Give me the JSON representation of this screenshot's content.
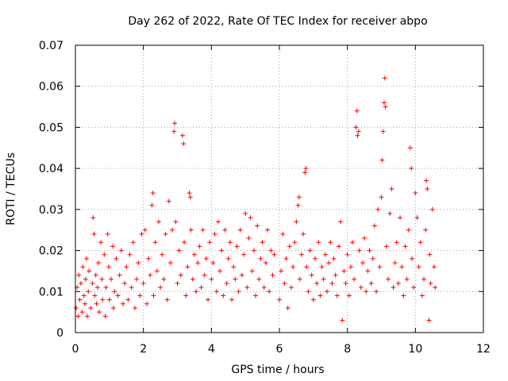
{
  "chart_data": {
    "type": "scatter",
    "title": "Day 262 of 2022, Rate Of TEC Index for receiver abpo",
    "xlabel": "GPS time / hours",
    "ylabel": "ROTI / TECUs",
    "xlim": [
      0,
      12
    ],
    "ylim": [
      0,
      0.07
    ],
    "x_ticks": [
      0,
      2,
      4,
      6,
      8,
      10,
      12
    ],
    "x_tick_labels": [
      "0",
      "2",
      "4",
      "6",
      "8",
      "10",
      "12"
    ],
    "y_ticks": [
      0,
      0.01,
      0.02,
      0.03,
      0.04,
      0.05,
      0.06,
      0.07
    ],
    "y_tick_labels": [
      "0",
      "0.01",
      "0.02",
      "0.03",
      "0.04",
      "0.05",
      "0.06",
      "0.07"
    ],
    "grid": true,
    "legend": "none",
    "marker": "plus",
    "color": "#ff0000",
    "series": [
      {
        "points": [
          [
            0.02,
            0.006
          ],
          [
            0.05,
            0.011
          ],
          [
            0.08,
            0.004
          ],
          [
            0.1,
            0.014
          ],
          [
            0.13,
            0.008
          ],
          [
            0.16,
            0.012
          ],
          [
            0.2,
            0.005
          ],
          [
            0.22,
            0.016
          ],
          [
            0.25,
            0.009
          ],
          [
            0.28,
            0.007
          ],
          [
            0.3,
            0.013
          ],
          [
            0.33,
            0.018
          ],
          [
            0.35,
            0.004
          ],
          [
            0.38,
            0.01
          ],
          [
            0.4,
            0.015
          ],
          [
            0.45,
            0.006
          ],
          [
            0.5,
            0.012
          ],
          [
            0.52,
            0.028
          ],
          [
            0.55,
            0.024
          ],
          [
            0.57,
            0.009
          ],
          [
            0.6,
            0.014
          ],
          [
            0.62,
            0.007
          ],
          [
            0.65,
            0.011
          ],
          [
            0.68,
            0.017
          ],
          [
            0.7,
            0.005
          ],
          [
            0.75,
            0.022
          ],
          [
            0.78,
            0.013
          ],
          [
            0.8,
            0.008
          ],
          [
            0.85,
            0.019
          ],
          [
            0.88,
            0.004
          ],
          [
            0.9,
            0.011
          ],
          [
            0.95,
            0.024
          ],
          [
            0.98,
            0.016
          ],
          [
            1.0,
            0.008
          ],
          [
            1.05,
            0.013
          ],
          [
            1.1,
            0.021
          ],
          [
            1.12,
            0.006
          ],
          [
            1.15,
            0.01
          ],
          [
            1.2,
            0.018
          ],
          [
            1.25,
            0.009
          ],
          [
            1.3,
            0.014
          ],
          [
            1.35,
            0.02
          ],
          [
            1.4,
            0.007
          ],
          [
            1.45,
            0.012
          ],
          [
            1.5,
            0.016
          ],
          [
            1.55,
            0.008
          ],
          [
            1.6,
            0.019
          ],
          [
            1.65,
            0.011
          ],
          [
            1.7,
            0.022
          ],
          [
            1.75,
            0.006
          ],
          [
            1.8,
            0.013
          ],
          [
            1.85,
            0.017
          ],
          [
            1.9,
            0.009
          ],
          [
            1.95,
            0.024
          ],
          [
            2.0,
            0.012
          ],
          [
            2.05,
            0.025
          ],
          [
            2.1,
            0.007
          ],
          [
            2.15,
            0.018
          ],
          [
            2.2,
            0.014
          ],
          [
            2.25,
            0.031
          ],
          [
            2.28,
            0.034
          ],
          [
            2.3,
            0.009
          ],
          [
            2.35,
            0.022
          ],
          [
            2.4,
            0.015
          ],
          [
            2.45,
            0.027
          ],
          [
            2.5,
            0.011
          ],
          [
            2.55,
            0.019
          ],
          [
            2.6,
            0.013
          ],
          [
            2.65,
            0.024
          ],
          [
            2.7,
            0.008
          ],
          [
            2.75,
            0.032
          ],
          [
            2.8,
            0.017
          ],
          [
            2.85,
            0.025
          ],
          [
            2.9,
            0.049
          ],
          [
            2.92,
            0.051
          ],
          [
            2.95,
            0.027
          ],
          [
            3.0,
            0.012
          ],
          [
            3.05,
            0.02
          ],
          [
            3.1,
            0.014
          ],
          [
            3.15,
            0.048
          ],
          [
            3.18,
            0.046
          ],
          [
            3.2,
            0.022
          ],
          [
            3.25,
            0.009
          ],
          [
            3.3,
            0.016
          ],
          [
            3.35,
            0.034
          ],
          [
            3.38,
            0.033
          ],
          [
            3.4,
            0.025
          ],
          [
            3.45,
            0.013
          ],
          [
            3.5,
            0.019
          ],
          [
            3.55,
            0.01
          ],
          [
            3.6,
            0.017
          ],
          [
            3.65,
            0.021
          ],
          [
            3.7,
            0.011
          ],
          [
            3.75,
            0.025
          ],
          [
            3.8,
            0.014
          ],
          [
            3.85,
            0.018
          ],
          [
            3.9,
            0.008
          ],
          [
            3.95,
            0.022
          ],
          [
            4.0,
            0.013
          ],
          [
            4.05,
            0.017
          ],
          [
            4.1,
            0.024
          ],
          [
            4.15,
            0.01
          ],
          [
            4.2,
            0.027
          ],
          [
            4.25,
            0.015
          ],
          [
            4.3,
            0.02
          ],
          [
            4.35,
            0.009
          ],
          [
            4.4,
            0.025
          ],
          [
            4.45,
            0.012
          ],
          [
            4.5,
            0.018
          ],
          [
            4.55,
            0.022
          ],
          [
            4.6,
            0.008
          ],
          [
            4.65,
            0.016
          ],
          [
            4.7,
            0.013
          ],
          [
            4.75,
            0.021
          ],
          [
            4.8,
            0.01
          ],
          [
            4.85,
            0.025
          ],
          [
            4.9,
            0.014
          ],
          [
            4.95,
            0.019
          ],
          [
            5.0,
            0.029
          ],
          [
            5.05,
            0.011
          ],
          [
            5.1,
            0.023
          ],
          [
            5.15,
            0.028
          ],
          [
            5.2,
            0.015
          ],
          [
            5.25,
            0.02
          ],
          [
            5.3,
            0.009
          ],
          [
            5.35,
            0.026
          ],
          [
            5.4,
            0.013
          ],
          [
            5.45,
            0.018
          ],
          [
            5.5,
            0.022
          ],
          [
            5.55,
            0.011
          ],
          [
            5.6,
            0.017
          ],
          [
            5.65,
            0.025
          ],
          [
            5.7,
            0.01
          ],
          [
            5.75,
            0.02
          ],
          [
            5.8,
            0.014
          ],
          [
            5.85,
            0.019
          ],
          [
            6.0,
            0.008
          ],
          [
            6.05,
            0.015
          ],
          [
            6.1,
            0.024
          ],
          [
            6.15,
            0.012
          ],
          [
            6.2,
            0.018
          ],
          [
            6.25,
            0.006
          ],
          [
            6.3,
            0.021
          ],
          [
            6.35,
            0.011
          ],
          [
            6.4,
            0.016
          ],
          [
            6.45,
            0.022
          ],
          [
            6.5,
            0.027
          ],
          [
            6.55,
            0.031
          ],
          [
            6.58,
            0.033
          ],
          [
            6.6,
            0.013
          ],
          [
            6.65,
            0.019
          ],
          [
            6.7,
            0.024
          ],
          [
            6.75,
            0.039
          ],
          [
            6.78,
            0.04
          ],
          [
            6.8,
            0.016
          ],
          [
            6.85,
            0.01
          ],
          [
            6.9,
            0.02
          ],
          [
            6.95,
            0.014
          ],
          [
            7.0,
            0.008
          ],
          [
            7.05,
            0.018
          ],
          [
            7.1,
            0.012
          ],
          [
            7.15,
            0.022
          ],
          [
            7.2,
            0.009
          ],
          [
            7.25,
            0.016
          ],
          [
            7.3,
            0.013
          ],
          [
            7.35,
            0.019
          ],
          [
            7.4,
            0.01
          ],
          [
            7.45,
            0.017
          ],
          [
            7.5,
            0.022
          ],
          [
            7.55,
            0.012
          ],
          [
            7.6,
            0.018
          ],
          [
            7.65,
            0.014
          ],
          [
            7.7,
            0.009
          ],
          [
            7.75,
            0.021
          ],
          [
            7.8,
            0.027
          ],
          [
            7.85,
            0.003
          ],
          [
            7.9,
            0.015
          ],
          [
            7.95,
            0.012
          ],
          [
            8.0,
            0.019
          ],
          [
            8.05,
            0.009
          ],
          [
            8.1,
            0.016
          ],
          [
            8.15,
            0.022
          ],
          [
            8.2,
            0.013
          ],
          [
            8.25,
            0.05
          ],
          [
            8.28,
            0.054
          ],
          [
            8.3,
            0.048
          ],
          [
            8.33,
            0.049
          ],
          [
            8.35,
            0.02
          ],
          [
            8.4,
            0.011
          ],
          [
            8.45,
            0.017
          ],
          [
            8.5,
            0.023
          ],
          [
            8.55,
            0.01
          ],
          [
            8.6,
            0.015
          ],
          [
            8.65,
            0.02
          ],
          [
            8.7,
            0.012
          ],
          [
            8.75,
            0.018
          ],
          [
            8.8,
            0.026
          ],
          [
            8.85,
            0.01
          ],
          [
            8.9,
            0.03
          ],
          [
            8.95,
            0.016
          ],
          [
            9.0,
            0.033
          ],
          [
            9.02,
            0.042
          ],
          [
            9.05,
            0.049
          ],
          [
            9.08,
            0.056
          ],
          [
            9.1,
            0.062
          ],
          [
            9.12,
            0.055
          ],
          [
            9.15,
            0.021
          ],
          [
            9.2,
            0.013
          ],
          [
            9.25,
            0.029
          ],
          [
            9.3,
            0.035
          ],
          [
            9.35,
            0.011
          ],
          [
            9.4,
            0.017
          ],
          [
            9.45,
            0.022
          ],
          [
            9.5,
            0.012
          ],
          [
            9.55,
            0.028
          ],
          [
            9.6,
            0.016
          ],
          [
            9.65,
            0.009
          ],
          [
            9.7,
            0.021
          ],
          [
            9.75,
            0.013
          ],
          [
            9.8,
            0.025
          ],
          [
            9.85,
            0.045
          ],
          [
            9.88,
            0.04
          ],
          [
            9.9,
            0.018
          ],
          [
            9.95,
            0.011
          ],
          [
            10.0,
            0.034
          ],
          [
            10.05,
            0.028
          ],
          [
            10.1,
            0.016
          ],
          [
            10.15,
            0.022
          ],
          [
            10.2,
            0.009
          ],
          [
            10.25,
            0.013
          ],
          [
            10.3,
            0.025
          ],
          [
            10.32,
            0.037
          ],
          [
            10.35,
            0.035
          ],
          [
            10.4,
            0.003
          ],
          [
            10.42,
            0.019
          ],
          [
            10.45,
            0.012
          ],
          [
            10.5,
            0.03
          ],
          [
            10.55,
            0.016
          ],
          [
            10.58,
            0.011
          ]
        ]
      }
    ]
  }
}
